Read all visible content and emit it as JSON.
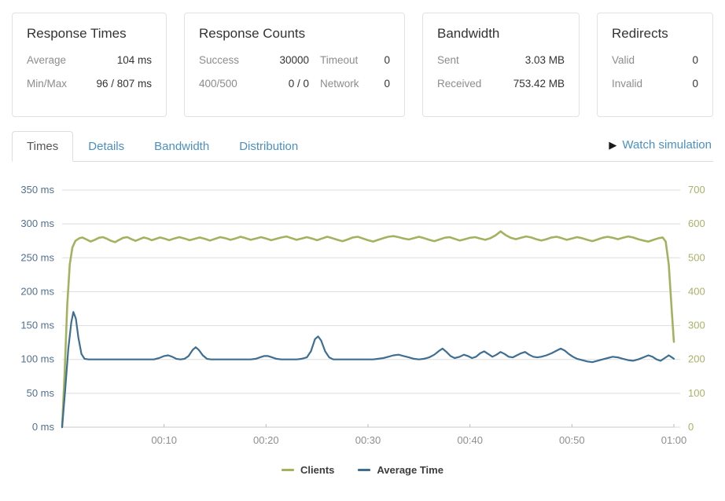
{
  "cards": {
    "response_times": {
      "title": "Response Times",
      "rows": [
        {
          "label": "Average",
          "value": "104 ms"
        },
        {
          "label": "Min/Max",
          "value": "96 / 807 ms"
        }
      ]
    },
    "response_counts": {
      "title": "Response Counts",
      "rows": [
        {
          "label": "Success",
          "value": "30000",
          "label2": "Timeout",
          "value2": "0"
        },
        {
          "label": "400/500",
          "value": "0 / 0",
          "label2": "Network",
          "value2": "0"
        }
      ]
    },
    "bandwidth": {
      "title": "Bandwidth",
      "rows": [
        {
          "label": "Sent",
          "value": "3.03 MB"
        },
        {
          "label": "Received",
          "value": "753.42 MB"
        }
      ]
    },
    "redirects": {
      "title": "Redirects",
      "rows": [
        {
          "label": "Valid",
          "value": "0"
        },
        {
          "label": "Invalid",
          "value": "0"
        }
      ]
    }
  },
  "tabs": {
    "items": [
      {
        "label": "Times",
        "active": true
      },
      {
        "label": "Details",
        "active": false
      },
      {
        "label": "Bandwidth",
        "active": false
      },
      {
        "label": "Distribution",
        "active": false
      }
    ],
    "watch_simulation": "Watch simulation",
    "play_icon": "▶"
  },
  "chart_data": {
    "type": "line",
    "title": "",
    "grid": true,
    "grid_color": "#dddddd",
    "axis_line_color": "#c9c9c9",
    "legend_position": "bottom",
    "x_axis": {
      "label": "",
      "range": [
        0,
        60
      ],
      "color": "#8e8e8e",
      "ticks": [
        {
          "t": 10,
          "label": "00:10"
        },
        {
          "t": 20,
          "label": "00:20"
        },
        {
          "t": 30,
          "label": "00:30"
        },
        {
          "t": 40,
          "label": "00:40"
        },
        {
          "t": 50,
          "label": "00:50"
        },
        {
          "t": 60,
          "label": "01:00"
        }
      ]
    },
    "y_left": {
      "label": "",
      "range": [
        0,
        350
      ],
      "color": "#51708f",
      "tick_values": [
        0,
        50,
        100,
        150,
        200,
        250,
        300,
        350
      ],
      "tick_labels": [
        "0 ms",
        "50 ms",
        "100 ms",
        "150 ms",
        "200 ms",
        "250 ms",
        "300 ms",
        "350 ms"
      ]
    },
    "y_right": {
      "label": "",
      "range": [
        0,
        700
      ],
      "color": "#a9b268",
      "tick_values": [
        0,
        100,
        200,
        300,
        400,
        500,
        600,
        700
      ],
      "tick_labels": [
        "0",
        "100",
        "200",
        "300",
        "400",
        "500",
        "600",
        "700"
      ]
    },
    "series": [
      {
        "name": "Clients",
        "axis": "right",
        "color": "#a2b35f",
        "width": 2.6,
        "points": [
          [
            0,
            0
          ],
          [
            0.25,
            160
          ],
          [
            0.5,
            360
          ],
          [
            0.75,
            480
          ],
          [
            1,
            530
          ],
          [
            1.3,
            550
          ],
          [
            1.7,
            558
          ],
          [
            2,
            560
          ],
          [
            2.4,
            554
          ],
          [
            2.8,
            548
          ],
          [
            3.2,
            553
          ],
          [
            3.6,
            559
          ],
          [
            4,
            561
          ],
          [
            4.4,
            556
          ],
          [
            4.8,
            550
          ],
          [
            5.2,
            546
          ],
          [
            5.6,
            553
          ],
          [
            6,
            559
          ],
          [
            6.4,
            561
          ],
          [
            6.8,
            555
          ],
          [
            7.2,
            550
          ],
          [
            7.6,
            555
          ],
          [
            8,
            560
          ],
          [
            8.4,
            557
          ],
          [
            8.8,
            552
          ],
          [
            9.2,
            556
          ],
          [
            9.6,
            560
          ],
          [
            10,
            557
          ],
          [
            10.5,
            552
          ],
          [
            11,
            557
          ],
          [
            11.5,
            561
          ],
          [
            12,
            557
          ],
          [
            12.5,
            552
          ],
          [
            13,
            556
          ],
          [
            13.5,
            560
          ],
          [
            14,
            556
          ],
          [
            14.5,
            551
          ],
          [
            15,
            556
          ],
          [
            15.5,
            561
          ],
          [
            16,
            558
          ],
          [
            16.5,
            553
          ],
          [
            17,
            557
          ],
          [
            17.5,
            562
          ],
          [
            18,
            558
          ],
          [
            18.5,
            553
          ],
          [
            19,
            557
          ],
          [
            19.5,
            561
          ],
          [
            20,
            557
          ],
          [
            20.5,
            552
          ],
          [
            21,
            556
          ],
          [
            21.5,
            560
          ],
          [
            22,
            563
          ],
          [
            22.5,
            558
          ],
          [
            23,
            553
          ],
          [
            23.5,
            557
          ],
          [
            24,
            561
          ],
          [
            24.5,
            557
          ],
          [
            25,
            552
          ],
          [
            25.5,
            557
          ],
          [
            26,
            562
          ],
          [
            26.5,
            558
          ],
          [
            27,
            553
          ],
          [
            27.5,
            549
          ],
          [
            28,
            554
          ],
          [
            28.5,
            560
          ],
          [
            29,
            562
          ],
          [
            29.5,
            557
          ],
          [
            30,
            552
          ],
          [
            30.5,
            548
          ],
          [
            31,
            553
          ],
          [
            31.5,
            558
          ],
          [
            32,
            562
          ],
          [
            32.5,
            564
          ],
          [
            33,
            561
          ],
          [
            33.5,
            557
          ],
          [
            34,
            554
          ],
          [
            34.5,
            558
          ],
          [
            35,
            562
          ],
          [
            35.5,
            558
          ],
          [
            36,
            553
          ],
          [
            36.5,
            549
          ],
          [
            37,
            554
          ],
          [
            37.5,
            559
          ],
          [
            38,
            561
          ],
          [
            38.5,
            556
          ],
          [
            39,
            551
          ],
          [
            39.5,
            555
          ],
          [
            40,
            559
          ],
          [
            40.5,
            561
          ],
          [
            41,
            557
          ],
          [
            41.5,
            553
          ],
          [
            42,
            558
          ],
          [
            42.5,
            566
          ],
          [
            43,
            578
          ],
          [
            43.5,
            567
          ],
          [
            44,
            559
          ],
          [
            44.5,
            555
          ],
          [
            45,
            559
          ],
          [
            45.5,
            563
          ],
          [
            46,
            560
          ],
          [
            46.5,
            555
          ],
          [
            47,
            551
          ],
          [
            47.5,
            555
          ],
          [
            48,
            560
          ],
          [
            48.5,
            562
          ],
          [
            49,
            558
          ],
          [
            49.5,
            553
          ],
          [
            50,
            557
          ],
          [
            50.5,
            561
          ],
          [
            51,
            558
          ],
          [
            51.5,
            553
          ],
          [
            52,
            549
          ],
          [
            52.5,
            554
          ],
          [
            53,
            559
          ],
          [
            53.5,
            562
          ],
          [
            54,
            559
          ],
          [
            54.5,
            555
          ],
          [
            55,
            559
          ],
          [
            55.5,
            563
          ],
          [
            56,
            560
          ],
          [
            56.5,
            555
          ],
          [
            57,
            551
          ],
          [
            57.5,
            548
          ],
          [
            58,
            553
          ],
          [
            58.5,
            558
          ],
          [
            58.9,
            560
          ],
          [
            59.2,
            548
          ],
          [
            59.5,
            480
          ],
          [
            59.8,
            340
          ],
          [
            60,
            252
          ]
        ]
      },
      {
        "name": "Average Time",
        "axis": "left",
        "color": "#3e6e91",
        "width": 2.2,
        "points": [
          [
            0,
            0
          ],
          [
            0.3,
            55
          ],
          [
            0.6,
            115
          ],
          [
            0.9,
            155
          ],
          [
            1.1,
            170
          ],
          [
            1.35,
            160
          ],
          [
            1.6,
            132
          ],
          [
            1.9,
            108
          ],
          [
            2.2,
            101
          ],
          [
            2.6,
            100
          ],
          [
            3,
            100
          ],
          [
            3.5,
            100
          ],
          [
            4,
            100
          ],
          [
            4.5,
            100
          ],
          [
            5,
            100
          ],
          [
            5.5,
            100
          ],
          [
            6,
            100
          ],
          [
            6.5,
            100
          ],
          [
            7,
            100
          ],
          [
            7.5,
            100
          ],
          [
            8,
            100
          ],
          [
            8.5,
            100
          ],
          [
            9,
            100
          ],
          [
            9.5,
            102
          ],
          [
            10,
            105
          ],
          [
            10.4,
            106
          ],
          [
            10.8,
            104
          ],
          [
            11.2,
            101
          ],
          [
            11.6,
            100
          ],
          [
            12,
            101
          ],
          [
            12.4,
            105
          ],
          [
            12.8,
            114
          ],
          [
            13.1,
            118
          ],
          [
            13.4,
            114
          ],
          [
            13.8,
            106
          ],
          [
            14.2,
            101
          ],
          [
            14.6,
            100
          ],
          [
            15,
            100
          ],
          [
            15.5,
            100
          ],
          [
            16,
            100
          ],
          [
            16.5,
            100
          ],
          [
            17,
            100
          ],
          [
            17.5,
            100
          ],
          [
            18,
            100
          ],
          [
            18.5,
            100
          ],
          [
            19,
            101
          ],
          [
            19.4,
            103
          ],
          [
            19.8,
            105
          ],
          [
            20.2,
            105
          ],
          [
            20.6,
            103
          ],
          [
            21,
            101
          ],
          [
            21.5,
            100
          ],
          [
            22,
            100
          ],
          [
            22.5,
            100
          ],
          [
            23,
            100
          ],
          [
            23.5,
            101
          ],
          [
            24,
            103
          ],
          [
            24.4,
            112
          ],
          [
            24.8,
            130
          ],
          [
            25.1,
            134
          ],
          [
            25.4,
            128
          ],
          [
            25.8,
            112
          ],
          [
            26.2,
            103
          ],
          [
            26.6,
            100
          ],
          [
            27,
            100
          ],
          [
            27.5,
            100
          ],
          [
            28,
            100
          ],
          [
            28.5,
            100
          ],
          [
            29,
            100
          ],
          [
            29.5,
            100
          ],
          [
            30,
            100
          ],
          [
            30.5,
            100
          ],
          [
            31,
            101
          ],
          [
            31.5,
            102
          ],
          [
            32,
            104
          ],
          [
            32.5,
            106
          ],
          [
            33,
            107
          ],
          [
            33.5,
            105
          ],
          [
            34,
            103
          ],
          [
            34.5,
            101
          ],
          [
            35,
            100
          ],
          [
            35.5,
            101
          ],
          [
            36,
            103
          ],
          [
            36.5,
            107
          ],
          [
            37,
            113
          ],
          [
            37.3,
            116
          ],
          [
            37.7,
            111
          ],
          [
            38.1,
            105
          ],
          [
            38.5,
            102
          ],
          [
            39,
            104
          ],
          [
            39.4,
            107
          ],
          [
            39.8,
            105
          ],
          [
            40.2,
            102
          ],
          [
            40.6,
            104
          ],
          [
            41,
            109
          ],
          [
            41.4,
            112
          ],
          [
            41.8,
            108
          ],
          [
            42.2,
            104
          ],
          [
            42.6,
            107
          ],
          [
            43,
            111
          ],
          [
            43.4,
            108
          ],
          [
            43.8,
            104
          ],
          [
            44.2,
            103
          ],
          [
            44.6,
            106
          ],
          [
            45,
            109
          ],
          [
            45.4,
            111
          ],
          [
            45.8,
            107
          ],
          [
            46.2,
            104
          ],
          [
            46.6,
            103
          ],
          [
            47,
            104
          ],
          [
            47.5,
            106
          ],
          [
            48,
            109
          ],
          [
            48.5,
            113
          ],
          [
            48.9,
            116
          ],
          [
            49.3,
            113
          ],
          [
            49.7,
            108
          ],
          [
            50.1,
            104
          ],
          [
            50.5,
            101
          ],
          [
            51,
            99
          ],
          [
            51.5,
            97
          ],
          [
            52,
            96
          ],
          [
            52.5,
            98
          ],
          [
            53,
            100
          ],
          [
            53.5,
            102
          ],
          [
            54,
            104
          ],
          [
            54.5,
            103
          ],
          [
            55,
            101
          ],
          [
            55.5,
            99
          ],
          [
            56,
            98
          ],
          [
            56.5,
            100
          ],
          [
            57,
            103
          ],
          [
            57.5,
            106
          ],
          [
            57.9,
            104
          ],
          [
            58.3,
            100
          ],
          [
            58.7,
            98
          ],
          [
            59.1,
            102
          ],
          [
            59.5,
            106
          ],
          [
            59.8,
            103
          ],
          [
            60,
            101
          ]
        ]
      }
    ]
  }
}
